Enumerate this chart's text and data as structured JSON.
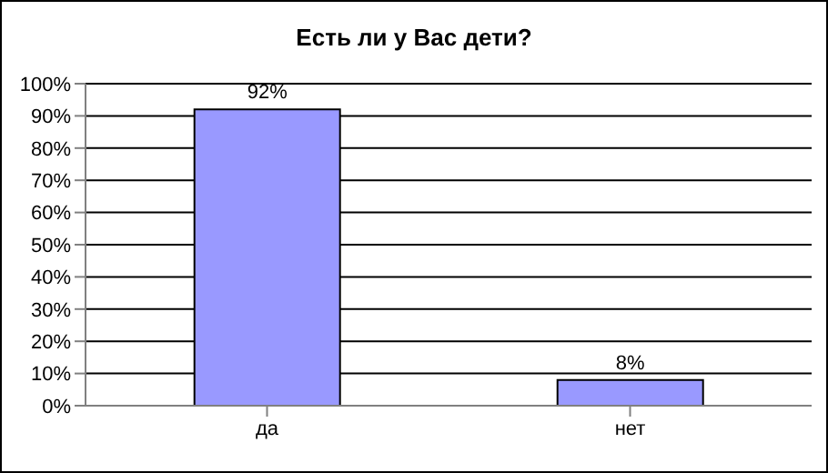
{
  "chart_data": {
    "type": "bar",
    "title": "Есть ли у Вас дети?",
    "categories": [
      "да",
      "нет"
    ],
    "values": [
      92,
      8
    ],
    "value_labels": [
      "92%",
      "8%"
    ],
    "color": "#9999ff",
    "ylim": [
      0,
      100
    ],
    "yticks": [
      {
        "value": 0,
        "label": "0%"
      },
      {
        "value": 10,
        "label": "10%"
      },
      {
        "value": 20,
        "label": "20%"
      },
      {
        "value": 30,
        "label": "30%"
      },
      {
        "value": 40,
        "label": "40%"
      },
      {
        "value": 50,
        "label": "50%"
      },
      {
        "value": 60,
        "label": "60%"
      },
      {
        "value": 70,
        "label": "70%"
      },
      {
        "value": 80,
        "label": "80%"
      },
      {
        "value": 90,
        "label": "90%"
      },
      {
        "value": 100,
        "label": "100%"
      }
    ],
    "grid": "y"
  }
}
